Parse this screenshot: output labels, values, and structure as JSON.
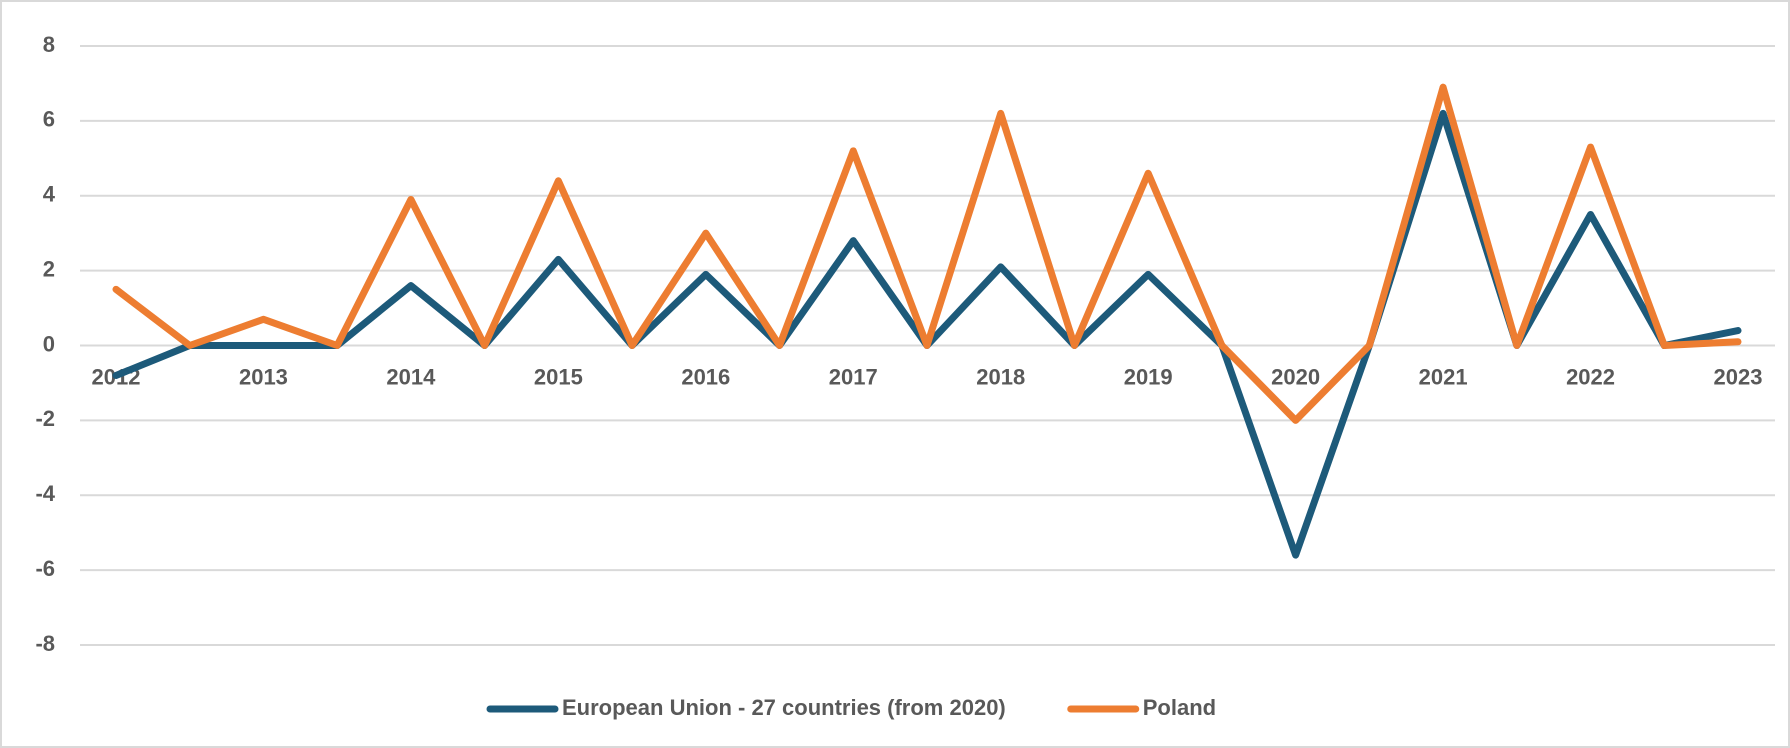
{
  "chart_data": {
    "type": "line",
    "categories": [
      "2012",
      null,
      "2013",
      null,
      "2014",
      null,
      "2015",
      null,
      "2016",
      null,
      "2017",
      null,
      "2018",
      null,
      "2019",
      null,
      "2020",
      null,
      "2021",
      null,
      "2022",
      null,
      "2023"
    ],
    "series": [
      {
        "name": "European Union - 27 countries (from 2020)",
        "color": "#1d5a7a",
        "values": [
          -0.8,
          0,
          0,
          0,
          1.6,
          0,
          2.3,
          0,
          1.9,
          0,
          2.8,
          0,
          2.1,
          0,
          1.9,
          0,
          -5.6,
          0,
          6.2,
          0,
          3.5,
          0,
          0.4
        ]
      },
      {
        "name": "Poland",
        "color": "#ed7d31",
        "values": [
          1.5,
          0,
          0.7,
          0,
          3.9,
          0,
          4.4,
          0,
          3.0,
          0,
          5.2,
          0,
          6.2,
          0,
          4.6,
          0,
          -2.0,
          0,
          6.9,
          0,
          5.3,
          0,
          0.1
        ]
      }
    ],
    "ylim": [
      -8,
      8
    ],
    "yticks": [
      8,
      6,
      4,
      2,
      0,
      -2,
      -4,
      -6,
      -8
    ],
    "grid": true,
    "legend": "bottom"
  }
}
